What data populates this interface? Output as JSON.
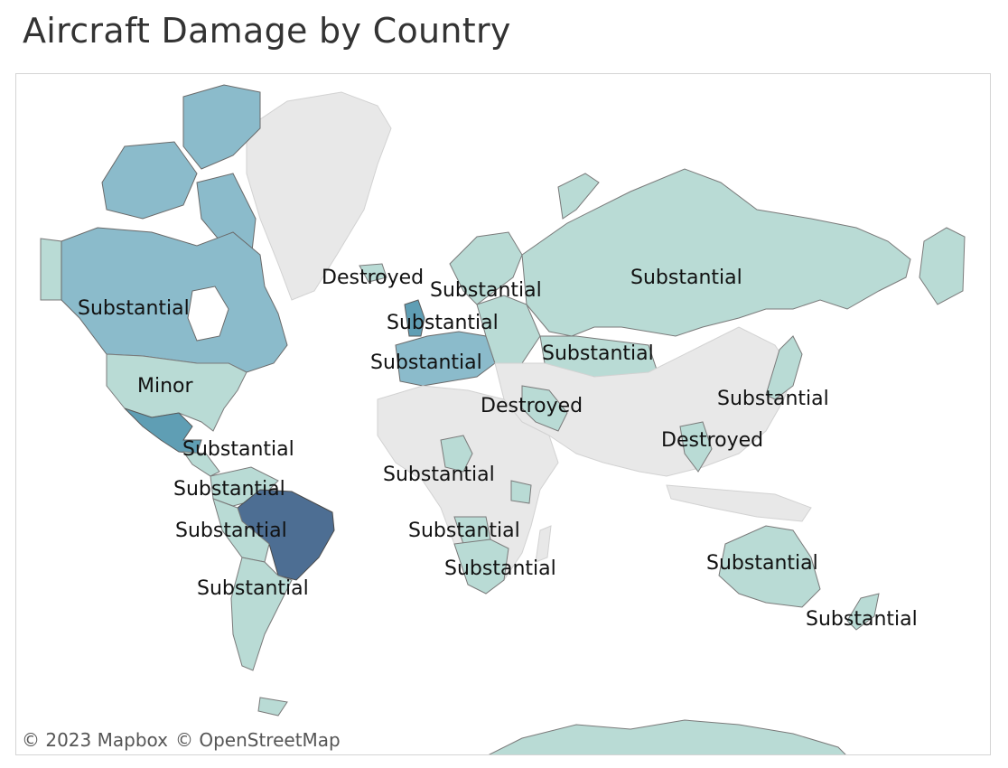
{
  "title": "Aircraft Damage by Country",
  "colors": {
    "no_data": "#e8e8e8",
    "light": "#b9dbd5",
    "mid": "#8bbbcb",
    "teal": "#5f9eb4",
    "dark": "#4d6e93"
  },
  "labels": [
    {
      "id": "canada",
      "text": "Substantial"
    },
    {
      "id": "usa",
      "text": "Minor"
    },
    {
      "id": "iceland",
      "text": "Destroyed"
    },
    {
      "id": "scandinavia",
      "text": "Substantial"
    },
    {
      "id": "uk",
      "text": "Substantial"
    },
    {
      "id": "western-europe",
      "text": "Substantial"
    },
    {
      "id": "russia",
      "text": "Substantial"
    },
    {
      "id": "ukraine",
      "text": "Substantial"
    },
    {
      "id": "middle-east",
      "text": "Destroyed"
    },
    {
      "id": "japan",
      "text": "Substantial"
    },
    {
      "id": "southeast-asia",
      "text": "Destroyed"
    },
    {
      "id": "central-america",
      "text": "Substantial"
    },
    {
      "id": "colombia",
      "text": "Substantial"
    },
    {
      "id": "brazil",
      "text": "Substantial"
    },
    {
      "id": "argentina",
      "text": "Substantial"
    },
    {
      "id": "west-africa",
      "text": "Substantial"
    },
    {
      "id": "angola",
      "text": "Substantial"
    },
    {
      "id": "south-africa",
      "text": "Substantial"
    },
    {
      "id": "australia",
      "text": "Substantial"
    },
    {
      "id": "new-zealand",
      "text": "Substantial"
    }
  ],
  "attribution": {
    "mapbox": "© 2023 Mapbox",
    "osm": "© OpenStreetMap"
  }
}
